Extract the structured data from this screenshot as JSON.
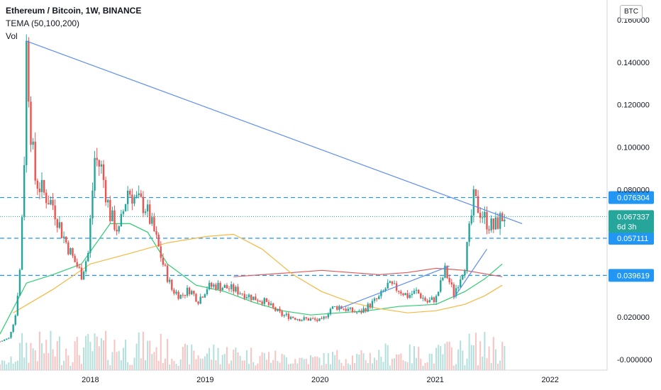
{
  "header": {
    "title": "Ethereum / Bitcoin, 1W, BINANCE",
    "indicator": "TEMA (50,100,200)",
    "volume": "Vol",
    "currency": "BTC"
  },
  "colors": {
    "up": "#26a69a",
    "down": "#ef5350",
    "trendline": "#5b8def",
    "hline": "#2196f3",
    "tema50": "#2ecc71",
    "tema100": "#e05a5a",
    "tema200": "#f5b942"
  },
  "chart_data": {
    "type": "candlestick",
    "ylim": [
      -0.005,
      0.166
    ],
    "xlim": [
      "2017-03-20",
      "2022-07-01"
    ],
    "yticks": [
      "0.160000",
      "0.140000",
      "0.120000",
      "0.100000",
      "0.080000",
      "0.020000",
      "-0.000000"
    ],
    "xticks": [
      {
        "date": "2018-01-01",
        "label": "2018"
      },
      {
        "date": "2019-01-01",
        "label": "2019"
      },
      {
        "date": "2020-01-01",
        "label": "2020"
      },
      {
        "date": "2021-01-01",
        "label": "2021"
      },
      {
        "date": "2022-01-01",
        "label": "2022"
      }
    ],
    "price_levels": [
      {
        "value": 0.076304,
        "label": "0.076304"
      },
      {
        "value": 0.057111,
        "label": "0.057111"
      },
      {
        "value": 0.039619,
        "label": "0.039619"
      }
    ],
    "last_price": {
      "value": 0.067337,
      "label": "0.067337",
      "countdown": "6d 3h"
    },
    "trendlines": [
      {
        "from": [
          "2017-06-12",
          0.15
        ],
        "to": [
          "2021-10-04",
          0.064
        ]
      },
      {
        "from": [
          "2020-03-02",
          0.024
        ],
        "to": [
          "2021-02-15",
          0.044
        ]
      },
      {
        "from": [
          "2021-03-01",
          0.029
        ],
        "to": [
          "2021-06-14",
          0.052
        ]
      }
    ],
    "series": [
      {
        "name": "TEMA 50",
        "type": "line",
        "points": [
          [
            "2017-03-20",
            0.012
          ],
          [
            "2017-06-12",
            0.036
          ],
          [
            "2017-09-04",
            0.04
          ],
          [
            "2017-12-04",
            0.045
          ],
          [
            "2018-03-05",
            0.064
          ],
          [
            "2018-05-07",
            0.064
          ],
          [
            "2018-07-02",
            0.06
          ],
          [
            "2018-09-03",
            0.045
          ],
          [
            "2018-12-03",
            0.035
          ],
          [
            "2019-03-04",
            0.032
          ],
          [
            "2019-06-03",
            0.027
          ],
          [
            "2019-09-02",
            0.023
          ],
          [
            "2019-12-02",
            0.021
          ],
          [
            "2020-03-02",
            0.022
          ],
          [
            "2020-06-01",
            0.023
          ],
          [
            "2020-09-07",
            0.025
          ],
          [
            "2021-01-04",
            0.026
          ],
          [
            "2021-04-05",
            0.032
          ],
          [
            "2021-06-07",
            0.038
          ],
          [
            "2021-08-02",
            0.045
          ]
        ]
      },
      {
        "name": "TEMA 100",
        "type": "line",
        "points": [
          [
            "2019-04-01",
            0.039
          ],
          [
            "2019-07-01",
            0.04
          ],
          [
            "2019-10-07",
            0.041
          ],
          [
            "2020-01-06",
            0.042
          ],
          [
            "2020-04-06",
            0.041
          ],
          [
            "2020-07-06",
            0.04
          ],
          [
            "2020-10-05",
            0.041
          ],
          [
            "2021-01-04",
            0.043
          ],
          [
            "2021-04-05",
            0.042
          ],
          [
            "2021-08-02",
            0.039
          ]
        ]
      },
      {
        "name": "TEMA 200",
        "type": "line",
        "points": [
          [
            "2017-05-01",
            0.022
          ],
          [
            "2017-09-04",
            0.033
          ],
          [
            "2018-01-01",
            0.045
          ],
          [
            "2018-05-07",
            0.05
          ],
          [
            "2018-09-03",
            0.055
          ],
          [
            "2019-01-07",
            0.058
          ],
          [
            "2019-04-01",
            0.059
          ],
          [
            "2019-07-01",
            0.052
          ],
          [
            "2019-10-07",
            0.04
          ],
          [
            "2020-01-06",
            0.032
          ],
          [
            "2020-04-06",
            0.027
          ],
          [
            "2020-07-06",
            0.024
          ],
          [
            "2020-10-05",
            0.022
          ],
          [
            "2021-01-04",
            0.023
          ],
          [
            "2021-04-05",
            0.026
          ],
          [
            "2021-06-07",
            0.03
          ],
          [
            "2021-08-02",
            0.035
          ]
        ]
      },
      {
        "name": "Price",
        "type": "candles",
        "values": [
          [
            "2017-03-20",
            0.0085
          ],
          [
            "2017-04-17",
            0.01
          ],
          [
            "2017-05-08",
            0.021
          ],
          [
            "2017-05-22",
            0.042
          ],
          [
            "2017-06-05",
            0.095
          ],
          [
            "2017-06-12",
            0.148
          ],
          [
            "2017-06-26",
            0.108
          ],
          [
            "2017-07-10",
            0.085
          ],
          [
            "2017-08-07",
            0.078
          ],
          [
            "2017-09-04",
            0.073
          ],
          [
            "2017-10-02",
            0.06
          ],
          [
            "2017-11-06",
            0.048
          ],
          [
            "2017-12-04",
            0.04
          ],
          [
            "2017-12-25",
            0.05
          ],
          [
            "2018-01-15",
            0.095
          ],
          [
            "2018-02-05",
            0.09
          ],
          [
            "2018-03-05",
            0.068
          ],
          [
            "2018-04-02",
            0.06
          ],
          [
            "2018-04-30",
            0.08
          ],
          [
            "2018-05-28",
            0.075
          ],
          [
            "2018-06-25",
            0.072
          ],
          [
            "2018-07-23",
            0.06
          ],
          [
            "2018-08-20",
            0.045
          ],
          [
            "2018-09-17",
            0.033
          ],
          [
            "2018-10-15",
            0.03
          ],
          [
            "2018-11-12",
            0.033
          ],
          [
            "2018-12-10",
            0.028
          ],
          [
            "2019-01-07",
            0.034
          ],
          [
            "2019-02-04",
            0.035
          ],
          [
            "2019-03-04",
            0.034
          ],
          [
            "2019-04-01",
            0.033
          ],
          [
            "2019-05-06",
            0.031
          ],
          [
            "2019-06-03",
            0.029
          ],
          [
            "2019-07-01",
            0.028
          ],
          [
            "2019-08-05",
            0.024
          ],
          [
            "2019-09-02",
            0.021
          ],
          [
            "2019-10-07",
            0.02
          ],
          [
            "2019-11-04",
            0.019
          ],
          [
            "2019-12-02",
            0.019
          ],
          [
            "2020-01-06",
            0.018
          ],
          [
            "2020-02-03",
            0.024
          ],
          [
            "2020-03-02",
            0.025
          ],
          [
            "2020-04-06",
            0.023
          ],
          [
            "2020-05-04",
            0.022
          ],
          [
            "2020-06-01",
            0.025
          ],
          [
            "2020-07-06",
            0.029
          ],
          [
            "2020-08-03",
            0.035
          ],
          [
            "2020-09-07",
            0.033
          ],
          [
            "2020-10-05",
            0.03
          ],
          [
            "2020-11-02",
            0.032
          ],
          [
            "2020-12-07",
            0.027
          ],
          [
            "2021-01-04",
            0.029
          ],
          [
            "2021-02-01",
            0.042
          ],
          [
            "2021-03-01",
            0.031
          ],
          [
            "2021-04-05",
            0.045
          ],
          [
            "2021-05-03",
            0.075
          ],
          [
            "2021-05-24",
            0.07
          ],
          [
            "2021-06-14",
            0.065
          ],
          [
            "2021-07-05",
            0.062
          ],
          [
            "2021-07-26",
            0.066
          ],
          [
            "2021-08-09",
            0.068
          ]
        ]
      },
      {
        "name": "Vol",
        "type": "volume"
      }
    ]
  }
}
